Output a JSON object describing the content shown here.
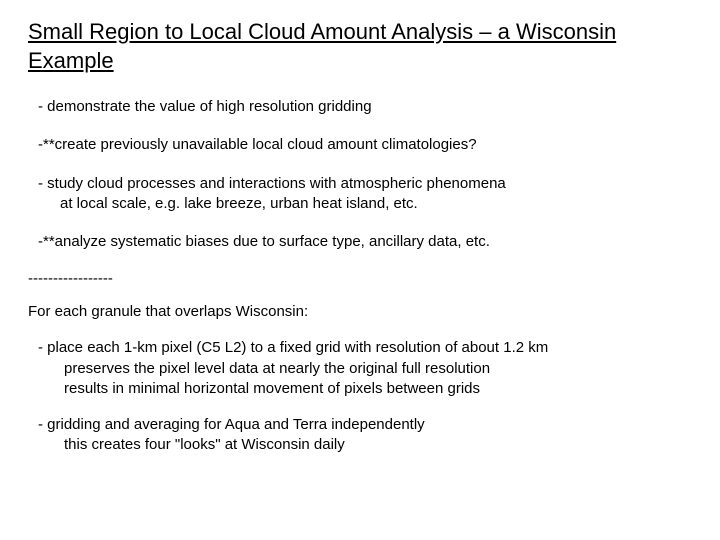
{
  "title": "Small Region to Local Cloud Amount Analysis – a Wisconsin Example",
  "bullets": [
    {
      "line1": "- demonstrate the value of high resolution gridding"
    },
    {
      "line1": "-**create previously unavailable local cloud amount climatologies?"
    },
    {
      "line1": "- study cloud processes and interactions with atmospheric phenomena",
      "line2": "at local scale, e.g. lake breeze, urban heat island, etc."
    },
    {
      "line1": "-**analyze systematic biases due to surface type, ancillary data, etc."
    }
  ],
  "divider": "-----------------",
  "section_intro": "For each granule that overlaps Wisconsin:",
  "sub_items": [
    {
      "line1": "- place each 1-km pixel (C5 L2) to a fixed grid with resolution of about 1.2 km",
      "line2": "preserves the pixel level data at nearly the original full resolution",
      "line3": "results in minimal horizontal movement of pixels between grids"
    },
    {
      "line1": "- gridding and averaging for Aqua and Terra independently",
      "line2": "this creates four \"looks\" at Wisconsin daily"
    }
  ]
}
